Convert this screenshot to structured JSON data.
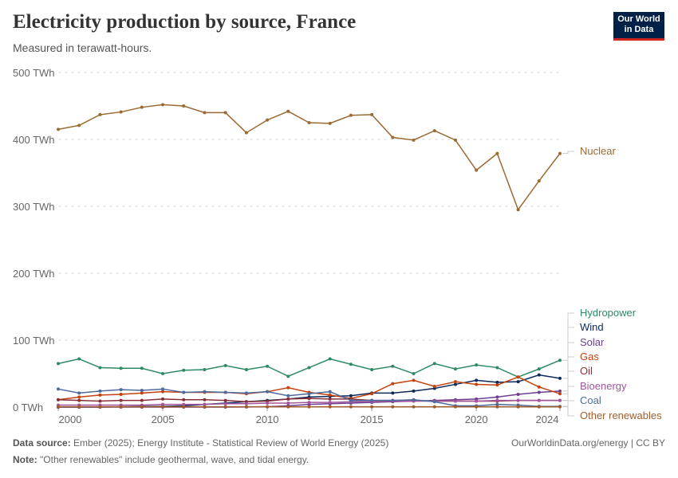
{
  "title": "Electricity production by source, France",
  "subtitle": "Measured in terawatt-hours.",
  "logo": "Our World in Data",
  "footer": {
    "source_label": "Data source:",
    "source": "Ember (2025); Energy Institute - Statistical Review of World Energy (2025)",
    "url": "OurWorldinData.org/energy | CC BY",
    "note_label": "Note:",
    "note": "\"Other renewables\" include geothermal, wave, and tidal energy."
  },
  "chart_data": {
    "type": "line",
    "x": [
      2000,
      2001,
      2002,
      2003,
      2004,
      2005,
      2006,
      2007,
      2008,
      2009,
      2010,
      2011,
      2012,
      2013,
      2014,
      2015,
      2016,
      2017,
      2018,
      2019,
      2020,
      2021,
      2022,
      2023,
      2024
    ],
    "xticks": [
      "2000",
      "2005",
      "2010",
      "2015",
      "2020",
      "2024"
    ],
    "yticks": [
      "0 TWh",
      "100 TWh",
      "200 TWh",
      "300 TWh",
      "400 TWh",
      "500 TWh"
    ],
    "ylim": [
      0,
      500
    ],
    "grid": "horizontal dashed",
    "legend": "right, inline labels",
    "series": [
      {
        "name": "Nuclear",
        "color": "#9a6a33",
        "values": [
          415,
          421,
          437,
          441,
          448,
          452,
          450,
          440,
          440,
          410,
          429,
          442,
          425,
          424,
          436,
          437,
          403,
          399,
          413,
          399,
          354,
          379,
          295,
          338,
          379
        ]
      },
      {
        "name": "Hydropower",
        "color": "#2e8a64",
        "values": [
          65,
          72,
          59,
          58,
          58,
          50,
          55,
          56,
          62,
          56,
          61,
          46,
          59,
          72,
          64,
          56,
          61,
          50,
          65,
          57,
          63,
          59,
          45,
          57,
          70
        ]
      },
      {
        "name": "Wind",
        "color": "#0c2a5b",
        "values": [
          0,
          0,
          0,
          0.5,
          1,
          1,
          2,
          4,
          6,
          8,
          10,
          12,
          15,
          16,
          17,
          21,
          21,
          24,
          28,
          34,
          40,
          37,
          38,
          48,
          43
        ]
      },
      {
        "name": "Solar",
        "color": "#6d3e91",
        "values": [
          0,
          0,
          0,
          0,
          0,
          0,
          0,
          0,
          0,
          0.2,
          0.6,
          2,
          4,
          5,
          6,
          7,
          8,
          9,
          10,
          11,
          12,
          15,
          19,
          22,
          24
        ]
      },
      {
        "name": "Gas",
        "color": "#c4420e",
        "values": [
          11,
          15,
          18,
          19,
          21,
          23,
          22,
          22,
          22,
          20,
          23,
          29,
          22,
          18,
          13,
          20,
          35,
          40,
          31,
          38,
          34,
          33,
          45,
          30,
          20
        ]
      },
      {
        "name": "Oil",
        "color": "#883039",
        "values": [
          11,
          10,
          9,
          10,
          10,
          12,
          11,
          11,
          10,
          8,
          9,
          12,
          13,
          12,
          12,
          10,
          10,
          10,
          9,
          9,
          9,
          9,
          10,
          10,
          10
        ]
      },
      {
        "name": "Bioenergy",
        "color": "#a2559c",
        "values": [
          3,
          3,
          3,
          3,
          3,
          4,
          4,
          4,
          5,
          5,
          6,
          6,
          7,
          7,
          8,
          8,
          9,
          9,
          9,
          9,
          9,
          10,
          10,
          10,
          10
        ]
      },
      {
        "name": "Coal",
        "color": "#4c6a9c",
        "values": [
          27,
          21,
          24,
          26,
          25,
          27,
          22,
          23,
          22,
          21,
          23,
          17,
          20,
          23,
          10,
          10,
          10,
          11,
          8,
          2,
          2,
          4,
          3,
          1,
          1
        ]
      },
      {
        "name": "Other renewables",
        "color": "#a15c2b",
        "values": [
          0.5,
          0.5,
          0.5,
          0.5,
          0.5,
          0.5,
          0.5,
          0.5,
          0.5,
          0.5,
          0.5,
          0.5,
          0.5,
          0.5,
          0.5,
          0.5,
          0.5,
          0.5,
          0.5,
          0.5,
          0.5,
          0.5,
          0.5,
          0.5,
          0.5
        ]
      }
    ]
  }
}
